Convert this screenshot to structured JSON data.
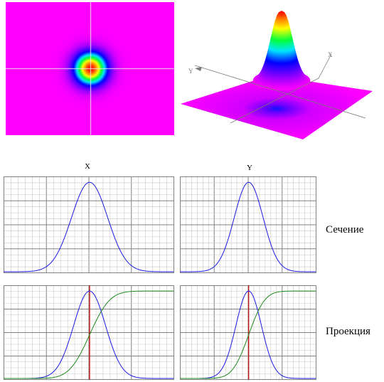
{
  "colors": {
    "background": "#ffffff",
    "magenta": "#ff00ff",
    "grid": "#c8c8c8",
    "grid_major": "#808080",
    "curve_blue": "#1a1ae6",
    "curve_green": "#1f8a1f",
    "marker_red": "#cc0000",
    "crosshair": "#e6e6e6"
  },
  "heatmap": {
    "colormap": "rainbow",
    "crosshair": true
  },
  "surface": {
    "axis_x_label": "X",
    "axis_y_label": "Y",
    "colormap": "rainbow"
  },
  "labels": {
    "row_section": "Сечение",
    "row_projection": "Проекция"
  },
  "chart_data": [
    {
      "type": "line",
      "title": "X",
      "row": "section",
      "column": "x",
      "xlim": [
        -4,
        4
      ],
      "ylim": [
        0,
        1.05
      ],
      "grid": true,
      "series": [
        {
          "kind": "gaussian",
          "mean": 0.05,
          "sigma": 0.85,
          "amplitude": 1.0,
          "color": "#1a1ae6"
        }
      ]
    },
    {
      "type": "line",
      "title": "Y",
      "row": "section",
      "column": "y",
      "xlim": [
        -4,
        4
      ],
      "ylim": [
        0,
        1.05
      ],
      "grid": true,
      "series": [
        {
          "kind": "gaussian",
          "mean": 0.05,
          "sigma": 0.85,
          "amplitude": 1.0,
          "color": "#1a1ae6"
        }
      ]
    },
    {
      "type": "line",
      "title": "",
      "row": "projection",
      "column": "x",
      "xlim": [
        -4,
        4
      ],
      "ylim": [
        0,
        1.05
      ],
      "grid": true,
      "vline_x": 0.05,
      "series": [
        {
          "kind": "gaussian",
          "mean": 0.05,
          "sigma": 0.75,
          "amplitude": 1.0,
          "color": "#1a1ae6"
        },
        {
          "kind": "cdf",
          "mean": 0.05,
          "sigma": 0.75,
          "amplitude": 1.0,
          "color": "#1f8a1f"
        }
      ]
    },
    {
      "type": "line",
      "title": "",
      "row": "projection",
      "column": "y",
      "xlim": [
        -4,
        4
      ],
      "ylim": [
        0,
        1.05
      ],
      "grid": true,
      "vline_x": 0.05,
      "series": [
        {
          "kind": "gaussian",
          "mean": 0.05,
          "sigma": 0.75,
          "amplitude": 1.0,
          "color": "#1a1ae6"
        },
        {
          "kind": "cdf",
          "mean": 0.05,
          "sigma": 0.75,
          "amplitude": 1.0,
          "color": "#1f8a1f"
        }
      ]
    }
  ]
}
